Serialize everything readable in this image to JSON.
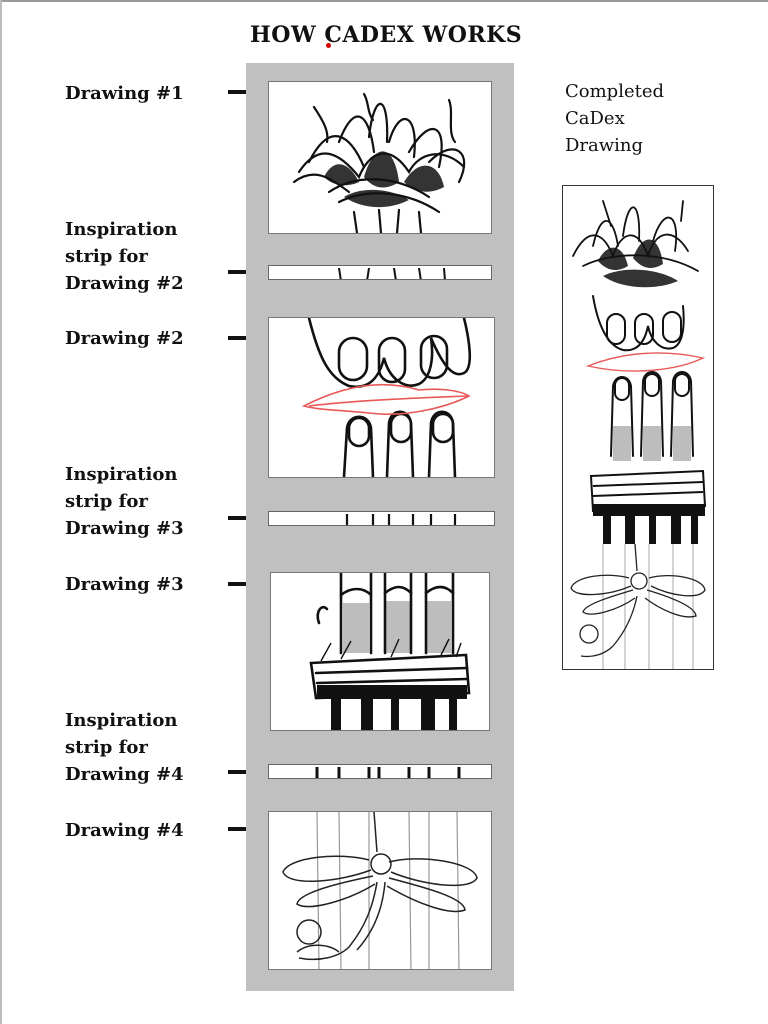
{
  "title": {
    "prefix": "HOW ",
    "accent_letter": "C",
    "suffix": "ADEX WORKS"
  },
  "labels": {
    "drawing1": "Drawing  #1",
    "strip2": [
      "Inspiration",
      "strip for",
      "Drawing #2"
    ],
    "drawing2": "Drawing #2",
    "strip3": [
      "Inspiration",
      "strip for",
      "Drawing #3"
    ],
    "drawing3": "Drawing #3",
    "strip4": [
      "Inspiration",
      "strip for",
      "Drawing #4"
    ],
    "drawing4": "Drawing #4"
  },
  "completed": [
    "Completed",
    "CaDex",
    "Drawing"
  ],
  "colors": {
    "accent": "#d40000",
    "column": "#c0c0c0",
    "lips": "#e85a5a"
  }
}
